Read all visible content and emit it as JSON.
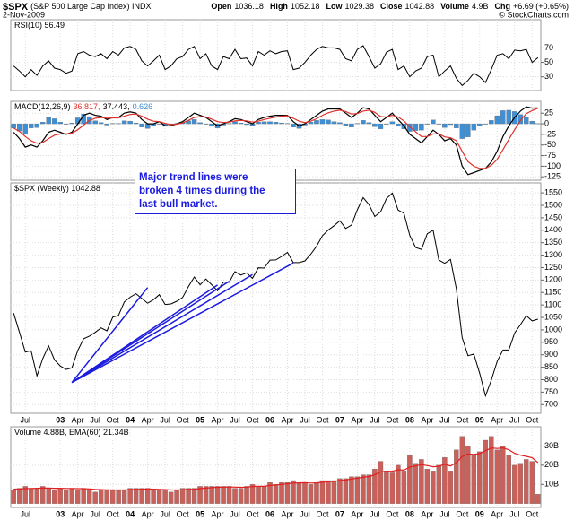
{
  "header": {
    "symbol": "$SPX",
    "name": "(S&P 500 Large Cap Index) INDX",
    "date": "2-Nov-2009",
    "quote": [
      {
        "label": "Open",
        "value": "1036.18"
      },
      {
        "label": "High",
        "value": "1052.18"
      },
      {
        "label": "Low",
        "value": "1029.38"
      },
      {
        "label": "Close",
        "value": "1042.88"
      },
      {
        "label": "Volume",
        "value": "4.9B"
      },
      {
        "label": "Chg",
        "value": "+6.69 (+0.65%)"
      }
    ],
    "credit": "© StockCharts.com"
  },
  "chart_data": [
    {
      "type": "line",
      "label": "RSI(10) 56.49",
      "color": "#000000",
      "ylim": [
        11,
        109
      ],
      "yticks": [
        70,
        50,
        30
      ],
      "grid": true,
      "values": [
        45,
        38,
        30,
        40,
        32,
        45,
        52,
        42,
        40,
        35,
        38,
        62,
        65,
        60,
        58,
        62,
        55,
        65,
        60,
        70,
        72,
        68,
        52,
        45,
        52,
        60,
        40,
        45,
        55,
        58,
        68,
        72,
        55,
        62,
        45,
        40,
        58,
        55,
        68,
        55,
        56,
        45,
        65,
        60,
        66,
        62,
        65,
        66,
        40,
        42,
        50,
        60,
        68,
        72,
        70,
        70,
        68,
        55,
        52,
        68,
        73,
        58,
        42,
        48,
        64,
        68,
        40,
        45,
        30,
        38,
        42,
        58,
        60,
        30,
        38,
        45,
        28,
        18,
        25,
        35,
        30,
        22,
        40,
        60,
        62,
        55,
        67,
        66,
        68,
        50,
        56.49
      ]
    },
    {
      "type": "combo",
      "label": "MACD(12,26,9)",
      "ylim": [
        -133,
        53
      ],
      "yticks": [
        25,
        0,
        -25,
        -50,
        -75,
        -100,
        -125
      ],
      "grid": true,
      "series": [
        {
          "name": "0.626",
          "type": "bar",
          "color": "#3d8fd6",
          "values": [
            -10,
            -17,
            -25,
            -10,
            -9,
            4,
            15,
            12,
            4,
            -1,
            2,
            14,
            23,
            17,
            7,
            3,
            -3,
            1,
            1,
            7,
            6,
            2,
            -8,
            -11,
            -6,
            0,
            -6,
            -3,
            1,
            3,
            7,
            10,
            3,
            -1,
            -6,
            -10,
            -3,
            1,
            5,
            2,
            -2,
            -4,
            4,
            5,
            5,
            4,
            2,
            1,
            -8,
            -11,
            -3,
            4,
            8,
            10,
            9,
            5,
            3,
            -4,
            -8,
            1,
            8,
            3,
            -7,
            -12,
            -1,
            5,
            -6,
            -12,
            -18,
            -16,
            -15,
            0,
            9,
            -1,
            -9,
            -2,
            -10,
            -35,
            -31,
            -15,
            -5,
            0,
            8,
            19,
            31,
            32,
            29,
            22,
            16,
            6,
            0.626
          ]
        },
        {
          "name": "37.443,",
          "type": "line",
          "color": "#000000",
          "values": [
            -20,
            -35,
            -55,
            -50,
            -55,
            -40,
            -20,
            -15,
            -20,
            -25,
            -20,
            0,
            20,
            25,
            20,
            18,
            10,
            15,
            15,
            25,
            28,
            25,
            10,
            0,
            0,
            5,
            -5,
            -5,
            0,
            5,
            15,
            25,
            20,
            15,
            5,
            -5,
            0,
            5,
            12,
            10,
            5,
            0,
            10,
            15,
            18,
            20,
            20,
            20,
            5,
            -5,
            0,
            10,
            20,
            30,
            35,
            35,
            35,
            25,
            15,
            25,
            38,
            35,
            20,
            5,
            15,
            25,
            10,
            -5,
            -25,
            -35,
            -45,
            -30,
            -15,
            -25,
            -40,
            -35,
            -50,
            -100,
            -120,
            -115,
            -110,
            -105,
            -90,
            -65,
            -30,
            -5,
            15,
            30,
            40,
            37,
            37.443
          ]
        },
        {
          "name": "36.817,",
          "type": "line",
          "color": "#e0302a",
          "values": [
            -10,
            -18,
            -30,
            -40,
            -46,
            -44,
            -35,
            -27,
            -24,
            -24,
            -22,
            -14,
            -3,
            8,
            13,
            15,
            13,
            14,
            14,
            18,
            22,
            23,
            18,
            11,
            6,
            5,
            1,
            -2,
            -1,
            2,
            8,
            15,
            17,
            16,
            11,
            5,
            3,
            4,
            7,
            8,
            7,
            4,
            6,
            10,
            13,
            16,
            18,
            19,
            13,
            6,
            3,
            6,
            12,
            20,
            26,
            30,
            32,
            29,
            23,
            24,
            30,
            32,
            27,
            17,
            16,
            20,
            16,
            7,
            -7,
            -19,
            -30,
            -30,
            -24,
            -24,
            -31,
            -33,
            -40,
            -65,
            -89,
            -100,
            -105,
            -105,
            -98,
            -84,
            -61,
            -37,
            -14,
            8,
            24,
            31,
            36.817
          ]
        }
      ]
    },
    {
      "type": "line",
      "label": "$SPX (Weekly) 1042.88",
      "color": "#000000",
      "ylim": [
        665,
        1590
      ],
      "grid": true,
      "yticks": [
        700,
        750,
        800,
        850,
        900,
        950,
        1000,
        1050,
        1100,
        1150,
        1200,
        1250,
        1300,
        1350,
        1400,
        1450,
        1500,
        1550
      ],
      "categories": [
        null,
        null,
        "Jul",
        null,
        null,
        null,
        null,
        null,
        "03",
        null,
        null,
        "Apr",
        null,
        null,
        "Jul",
        null,
        null,
        "Oct",
        null,
        null,
        "04",
        null,
        null,
        "Apr",
        null,
        null,
        "Jul",
        null,
        null,
        "Oct",
        null,
        null,
        "05",
        null,
        null,
        "Apr",
        null,
        null,
        "Jul",
        null,
        null,
        "Oct",
        null,
        null,
        "06",
        null,
        null,
        "Apr",
        null,
        null,
        "Jul",
        null,
        null,
        "Oct",
        null,
        null,
        "07",
        null,
        null,
        "Apr",
        null,
        null,
        "Jul",
        null,
        null,
        "Oct",
        null,
        null,
        "08",
        null,
        null,
        "Apr",
        null,
        null,
        "Jul",
        null,
        null,
        "Oct",
        null,
        null,
        "09",
        null,
        null,
        "Apr",
        null,
        null,
        "Jul",
        null,
        null,
        "Oct",
        null
      ],
      "values": [
        1067,
        990,
        911,
        916,
        815,
        885,
        936,
        880,
        855,
        841,
        848,
        917,
        964,
        975,
        990,
        1008,
        996,
        1051,
        1058,
        1112,
        1131,
        1145,
        1126,
        1107,
        1121,
        1141,
        1102,
        1104,
        1115,
        1130,
        1174,
        1212,
        1181,
        1204,
        1181,
        1157,
        1192,
        1191,
        1234,
        1220,
        1229,
        1207,
        1249,
        1248,
        1280,
        1281,
        1295,
        1311,
        1270,
        1270,
        1277,
        1304,
        1336,
        1378,
        1401,
        1418,
        1438,
        1407,
        1421,
        1482,
        1531,
        1503,
        1455,
        1474,
        1527,
        1549,
        1481,
        1468,
        1379,
        1331,
        1323,
        1386,
        1400,
        1280,
        1267,
        1283,
        1165,
        969,
        896,
        903,
        826,
        735,
        798,
        873,
        919,
        919,
        987,
        1021,
        1057,
        1036,
        1042.88
      ],
      "trend_color": "#1a1ae0",
      "trend_lines": [
        {
          "x0": 10,
          "y0": 789,
          "x1": 23,
          "y1": 1170
        },
        {
          "x0": 10,
          "y0": 789,
          "x1": 35,
          "y1": 1180
        },
        {
          "x0": 10,
          "y0": 789,
          "x1": 37,
          "y1": 1195
        },
        {
          "x0": 10,
          "y0": 789,
          "x1": 41,
          "y1": 1222
        },
        {
          "x0": 10,
          "y0": 789,
          "x1": 48,
          "y1": 1268
        }
      ],
      "annotation": [
        "Major trend lines were",
        "broken 4 times during the",
        "last bull market."
      ]
    },
    {
      "type": "combo",
      "label": "Volume 4.88B, EMA(60) 21.34B",
      "ylim": [
        -2,
        40
      ],
      "grid": true,
      "yticks": [
        {
          "value": 10,
          "label": "10B"
        },
        {
          "value": 20,
          "label": "20B"
        },
        {
          "value": 30,
          "label": "30B"
        }
      ],
      "categories": [
        null,
        null,
        "Jul",
        null,
        null,
        null,
        null,
        null,
        "03",
        null,
        null,
        "Apr",
        null,
        null,
        "Jul",
        null,
        null,
        "Oct",
        null,
        null,
        "04",
        null,
        null,
        "Apr",
        null,
        null,
        "Jul",
        null,
        null,
        "Oct",
        null,
        null,
        "05",
        null,
        null,
        "Apr",
        null,
        null,
        "Jul",
        null,
        null,
        "Oct",
        null,
        null,
        "06",
        null,
        null,
        "Apr",
        null,
        null,
        "Jul",
        null,
        null,
        "Oct",
        null,
        null,
        "07",
        null,
        null,
        "Apr",
        null,
        null,
        "Jul",
        null,
        null,
        "Oct",
        null,
        null,
        "08",
        null,
        null,
        "Apr",
        null,
        null,
        "Jul",
        null,
        null,
        "Oct",
        null,
        null,
        "09",
        null,
        null,
        "Apr",
        null,
        null,
        "Jul",
        null,
        null,
        "Oct",
        null
      ],
      "series": [
        {
          "type": "bar",
          "color": "#c9605a",
          "values": [
            7,
            8,
            9,
            8,
            8,
            9,
            8,
            7,
            8,
            7,
            8,
            7,
            8,
            7,
            6,
            7,
            7,
            7,
            7,
            7,
            8,
            8,
            8,
            8,
            7,
            7,
            7,
            6,
            7,
            8,
            8,
            8,
            9,
            9,
            9,
            9,
            9,
            9,
            8,
            8,
            9,
            10,
            9,
            9,
            11,
            10,
            11,
            11,
            12,
            11,
            11,
            10,
            11,
            12,
            12,
            12,
            13,
            13,
            14,
            14,
            15,
            15,
            18,
            22,
            17,
            16,
            20,
            17,
            25,
            21,
            23,
            18,
            17,
            20,
            24,
            17,
            28,
            35,
            30,
            25,
            27,
            33,
            35,
            28,
            30,
            25,
            20,
            21,
            23,
            22,
            4.88
          ]
        },
        {
          "type": "line",
          "color": "#e02020",
          "values": [
            7.5,
            7.6,
            7.8,
            7.9,
            8,
            8.1,
            8.1,
            8,
            8,
            7.9,
            7.9,
            7.8,
            7.8,
            7.6,
            7.4,
            7.3,
            7.2,
            7.1,
            7.1,
            7.1,
            7.3,
            7.4,
            7.5,
            7.6,
            7.5,
            7.4,
            7.3,
            7.1,
            7.1,
            7.2,
            7.4,
            7.5,
            7.8,
            8.1,
            8.3,
            8.5,
            8.6,
            8.7,
            8.6,
            8.5,
            8.6,
            8.9,
            9,
            9,
            9.5,
            9.7,
            10,
            10.3,
            10.7,
            10.8,
            10.9,
            10.7,
            10.8,
            11.1,
            11.4,
            11.6,
            12,
            12.3,
            12.8,
            13.2,
            13.7,
            14.1,
            15,
            16.5,
            16.8,
            16.8,
            17.6,
            17.4,
            19,
            19.6,
            20.3,
            19.8,
            19.2,
            19.4,
            20.5,
            19.6,
            21.3,
            24.5,
            25.8,
            25.6,
            26,
            27.5,
            29,
            28.7,
            29,
            28,
            26.2,
            25.2,
            24.6,
            23.9,
            21.34
          ]
        }
      ]
    }
  ]
}
